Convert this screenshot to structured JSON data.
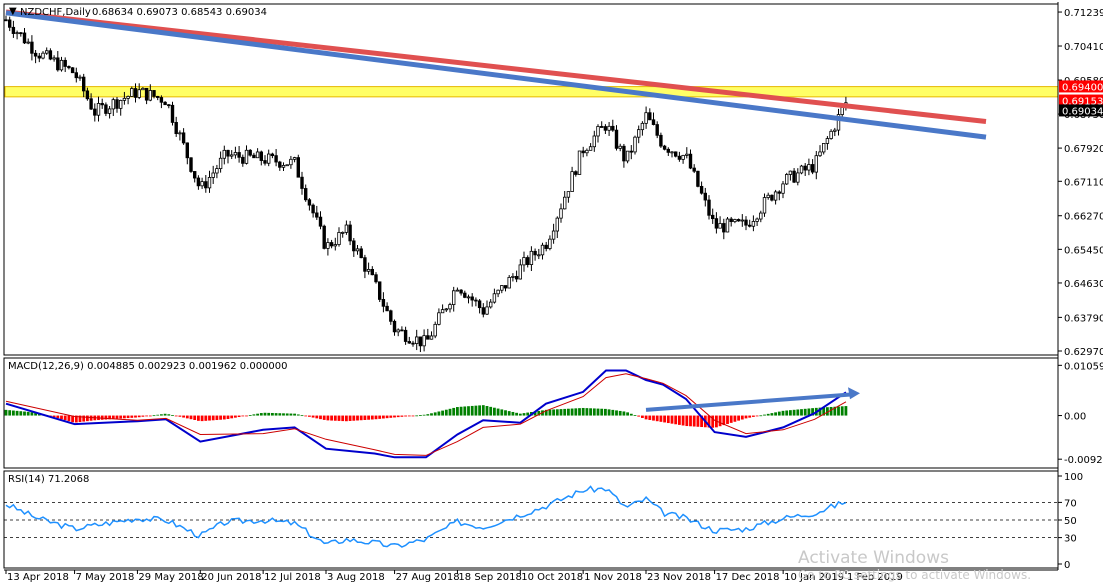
{
  "window": {
    "symbol_header": "NZDCHF,Daily",
    "ohlc_text": "0.68634 0.69073 0.68543 0.69034"
  },
  "watermark": {
    "line1": "Activate Windows",
    "line2": "Go to PC settings to activate Windows."
  },
  "chart_data": [
    {
      "type": "candlestick",
      "title": "NZDCHF,Daily",
      "ohlc_readout": [
        0.68634,
        0.69073,
        0.68543,
        0.69034
      ],
      "price_ticks": [
        "0.71239",
        "0.70410",
        "0.69580",
        "0.68750",
        "0.67920",
        "0.67110",
        "0.66270",
        "0.65450",
        "0.64630",
        "0.63790",
        "0.62970"
      ],
      "ylim": [
        0.6297,
        0.7124
      ],
      "date_ticks": [
        "13 Apr 2018",
        "7 May 2018",
        "29 May 2018",
        "20 Jun 2018",
        "12 Jul 2018",
        "3 Aug 2018",
        "27 Aug 2018",
        "18 Sep 2018",
        "10 Oct 2018",
        "1 Nov 2018",
        "23 Nov 2018",
        "17 Dec 2018",
        "10 Jan 2019",
        "1 Feb 2019"
      ],
      "highlighted_levels": [
        {
          "label": "0.69400",
          "value": 0.694,
          "color": "#ff0000"
        },
        {
          "label": "0.69153",
          "value": 0.69153,
          "color": "#ff0000"
        },
        {
          "label": "0.69034",
          "value": 0.69034,
          "color": "#000000"
        }
      ],
      "resistance_zone": {
        "from": 0.6917,
        "to": 0.6942,
        "color": "#ffff66"
      },
      "trendlines": [
        {
          "color": "#e05050",
          "from": [
            "13 Apr 2018",
            0.7124
          ],
          "to": [
            "1 Feb 2019",
            0.6895
          ]
        },
        {
          "color": "#4a78c8",
          "from": [
            "13 Apr 2018",
            0.7122
          ],
          "to": [
            "1 Feb 2019",
            0.6862
          ]
        }
      ],
      "series": [
        {
          "name": "NZDCHF",
          "close_path": [
            [
              "13 Apr 2018",
              0.7105
            ],
            [
              "24 Apr 2018",
              0.7025
            ],
            [
              "7 May 2018",
              0.6975
            ],
            [
              "14 May 2018",
              0.688
            ],
            [
              "29 May 2018",
              0.693
            ],
            [
              "8 Jun 2018",
              0.691
            ],
            [
              "20 Jun 2018",
              0.669
            ],
            [
              "29 Jun 2018",
              0.6775
            ],
            [
              "12 Jul 2018",
              0.6765
            ],
            [
              "23 Jul 2018",
              0.6755
            ],
            [
              "3 Aug 2018",
              0.655
            ],
            [
              "10 Aug 2018",
              0.659
            ],
            [
              "20 Aug 2018",
              0.646
            ],
            [
              "27 Aug 2018",
              0.635
            ],
            [
              "7 Sep 2018",
              0.6315
            ],
            [
              "18 Sep 2018",
              0.646
            ],
            [
              "27 Sep 2018",
              0.6395
            ],
            [
              "10 Oct 2018",
              0.65
            ],
            [
              "19 Oct 2018",
              0.656
            ],
            [
              "1 Nov 2018",
              0.679
            ],
            [
              "9 Nov 2018",
              0.685
            ],
            [
              "16 Nov 2018",
              0.676
            ],
            [
              "23 Nov 2018",
              0.687
            ],
            [
              "29 Nov 2018",
              0.68
            ],
            [
              "7 Dec 2018",
              0.677
            ],
            [
              "17 Dec 2018",
              0.66
            ],
            [
              "28 Dec 2018",
              0.6605
            ],
            [
              "10 Jan 2019",
              0.671
            ],
            [
              "21 Jan 2019",
              0.675
            ],
            [
              "1 Feb 2019",
              0.6903
            ]
          ]
        }
      ]
    },
    {
      "type": "line",
      "title": "MACD(12,26,9) 0.004885 0.002923 0.001962 0.000000",
      "y_ticks": [
        "0.010598",
        "0.00",
        "-0.009206"
      ],
      "ylim": [
        -0.0098,
        0.0113
      ],
      "series": [
        {
          "name": "MACD",
          "color": "#0000cc",
          "points": [
            [
              "13 Apr 2018",
              0.0025
            ],
            [
              "7 May 2018",
              -0.0018
            ],
            [
              "29 May 2018",
              -0.0012
            ],
            [
              "8 Jun 2018",
              -0.0008
            ],
            [
              "20 Jun 2018",
              -0.0055
            ],
            [
              "12 Jul 2018",
              -0.003
            ],
            [
              "23 Jul 2018",
              -0.0025
            ],
            [
              "3 Aug 2018",
              -0.007
            ],
            [
              "20 Aug 2018",
              -0.008
            ],
            [
              "27 Aug 2018",
              -0.0088
            ],
            [
              "7 Sep 2018",
              -0.0088
            ],
            [
              "18 Sep 2018",
              -0.004
            ],
            [
              "27 Sep 2018",
              -0.001
            ],
            [
              "10 Oct 2018",
              -0.0015
            ],
            [
              "19 Oct 2018",
              0.0025
            ],
            [
              "1 Nov 2018",
              0.005
            ],
            [
              "9 Nov 2018",
              0.0095
            ],
            [
              "16 Nov 2018",
              0.0095
            ],
            [
              "23 Nov 2018",
              0.0075
            ],
            [
              "29 Nov 2018",
              0.0065
            ],
            [
              "7 Dec 2018",
              0.0035
            ],
            [
              "17 Dec 2018",
              -0.0035
            ],
            [
              "28 Dec 2018",
              -0.0045
            ],
            [
              "10 Jan 2019",
              -0.0025
            ],
            [
              "21 Jan 2019",
              0.0005
            ],
            [
              "1 Feb 2019",
              0.0049
            ]
          ]
        },
        {
          "name": "Signal",
          "color": "#cc0000",
          "points": [
            [
              "13 Apr 2018",
              0.003
            ],
            [
              "7 May 2018",
              -0.0002
            ],
            [
              "29 May 2018",
              -0.001
            ],
            [
              "8 Jun 2018",
              -0.0006
            ],
            [
              "20 Jun 2018",
              -0.004
            ],
            [
              "12 Jul 2018",
              -0.0038
            ],
            [
              "23 Jul 2018",
              -0.0028
            ],
            [
              "3 Aug 2018",
              -0.005
            ],
            [
              "20 Aug 2018",
              -0.0072
            ],
            [
              "27 Aug 2018",
              -0.0082
            ],
            [
              "7 Sep 2018",
              -0.0084
            ],
            [
              "18 Sep 2018",
              -0.0055
            ],
            [
              "27 Sep 2018",
              -0.0025
            ],
            [
              "10 Oct 2018",
              -0.0018
            ],
            [
              "19 Oct 2018",
              0.001
            ],
            [
              "1 Nov 2018",
              0.004
            ],
            [
              "9 Nov 2018",
              0.008
            ],
            [
              "16 Nov 2018",
              0.0088
            ],
            [
              "23 Nov 2018",
              0.0078
            ],
            [
              "29 Nov 2018",
              0.0068
            ],
            [
              "7 Dec 2018",
              0.0042
            ],
            [
              "17 Dec 2018",
              -0.001
            ],
            [
              "28 Dec 2018",
              -0.0038
            ],
            [
              "10 Jan 2019",
              -0.003
            ],
            [
              "21 Jan 2019",
              -0.0008
            ],
            [
              "1 Feb 2019",
              0.0029
            ]
          ]
        }
      ],
      "histogram": {
        "positive_color": "#008000",
        "negative_color": "#ff0000",
        "bars": [
          [
            "13 Apr 2018",
            0.0012
          ],
          [
            "24 Apr 2018",
            0.0006
          ],
          [
            "7 May 2018",
            -0.0015
          ],
          [
            "14 May 2018",
            -0.001
          ],
          [
            "29 May 2018",
            -0.0004
          ],
          [
            "8 Jun 2018",
            0.0004
          ],
          [
            "20 Jun 2018",
            -0.0012
          ],
          [
            "29 Jun 2018",
            -0.0008
          ],
          [
            "12 Jul 2018",
            0.0006
          ],
          [
            "23 Jul 2018",
            0.0004
          ],
          [
            "3 Aug 2018",
            -0.001
          ],
          [
            "10 Aug 2018",
            -0.0012
          ],
          [
            "20 Aug 2018",
            -0.0008
          ],
          [
            "27 Aug 2018",
            -0.0004
          ],
          [
            "7 Sep 2018",
            0.0002
          ],
          [
            "18 Sep 2018",
            0.0018
          ],
          [
            "27 Sep 2018",
            0.0022
          ],
          [
            "10 Oct 2018",
            0.0004
          ],
          [
            "19 Oct 2018",
            0.0012
          ],
          [
            "1 Nov 2018",
            0.0016
          ],
          [
            "9 Nov 2018",
            0.0014
          ],
          [
            "16 Nov 2018",
            0.0008
          ],
          [
            "23 Nov 2018",
            -0.0008
          ],
          [
            "29 Nov 2018",
            -0.0014
          ],
          [
            "7 Dec 2018",
            -0.0022
          ],
          [
            "17 Dec 2018",
            -0.0026
          ],
          [
            "28 Dec 2018",
            -0.0006
          ],
          [
            "10 Jan 2019",
            0.001
          ],
          [
            "21 Jan 2019",
            0.0016
          ],
          [
            "1 Feb 2019",
            0.002
          ]
        ]
      },
      "trendline": {
        "color": "#4a78c8",
        "from": [
          "23 Nov 2018",
          0.0012
        ],
        "to": [
          "1 Feb 2019",
          0.0045
        ]
      }
    },
    {
      "type": "line",
      "title": "RSI(14) 71.2068",
      "y_ticks": [
        "100",
        "70",
        "50",
        "30",
        "0"
      ],
      "ylim": [
        0,
        100
      ],
      "levels": [
        70,
        50,
        30
      ],
      "series": [
        {
          "name": "RSI",
          "color": "#1e90ff",
          "points": [
            [
              "13 Apr 2018",
              68
            ],
            [
              "24 Apr 2018",
              52
            ],
            [
              "7 May 2018",
              40
            ],
            [
              "14 May 2018",
              44
            ],
            [
              "29 May 2018",
              52
            ],
            [
              "8 Jun 2018",
              50
            ],
            [
              "20 Jun 2018",
              32
            ],
            [
              "29 Jun 2018",
              48
            ],
            [
              "12 Jul 2018",
              50
            ],
            [
              "23 Jul 2018",
              46
            ],
            [
              "3 Aug 2018",
              22
            ],
            [
              "10 Aug 2018",
              28
            ],
            [
              "20 Aug 2018",
              24
            ],
            [
              "27 Aug 2018",
              20
            ],
            [
              "7 Sep 2018",
              28
            ],
            [
              "18 Sep 2018",
              48
            ],
            [
              "27 Sep 2018",
              42
            ],
            [
              "10 Oct 2018",
              56
            ],
            [
              "19 Oct 2018",
              66
            ],
            [
              "1 Nov 2018",
              84
            ],
            [
              "9 Nov 2018",
              86
            ],
            [
              "16 Nov 2018",
              64
            ],
            [
              "23 Nov 2018",
              74
            ],
            [
              "29 Nov 2018",
              58
            ],
            [
              "7 Dec 2018",
              52
            ],
            [
              "17 Dec 2018",
              38
            ],
            [
              "28 Dec 2018",
              40
            ],
            [
              "10 Jan 2019",
              52
            ],
            [
              "21 Jan 2019",
              58
            ],
            [
              "1 Feb 2019",
              71
            ]
          ]
        }
      ]
    }
  ]
}
